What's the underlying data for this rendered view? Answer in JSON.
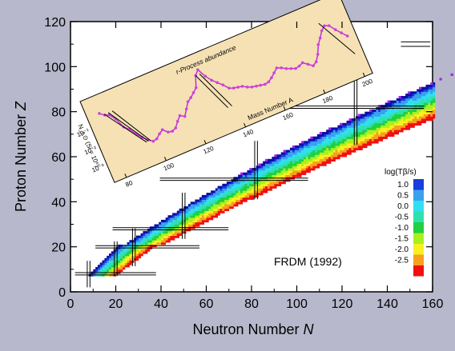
{
  "chart_data": {
    "type": "heatmap",
    "title": "",
    "xlabel": "Neutron Number",
    "xlabel_var": "N",
    "ylabel": "Proton Number",
    "ylabel_var": "Z",
    "xlim": [
      0,
      160
    ],
    "ylim": [
      0,
      120
    ],
    "x_ticks": [
      "0",
      "20",
      "40",
      "60",
      "80",
      "100",
      "120",
      "140",
      "160"
    ],
    "y_ticks": [
      "0",
      "20",
      "40",
      "60",
      "80",
      "100",
      "120"
    ],
    "model_label": "FRDM (1992)",
    "magic_numbers_N": [
      8,
      20,
      28,
      50,
      82,
      126
    ],
    "magic_numbers_Z": [
      8,
      20,
      28,
      50,
      82
    ],
    "color_scale": {
      "title": "log(Tβ/s)",
      "levels": [
        {
          "label": "1.0",
          "color": "#1a3ddb"
        },
        {
          "label": "0.5",
          "color": "#3aa0f0"
        },
        {
          "label": "0.0",
          "color": "#30e0f0"
        },
        {
          "label": "-0.5",
          "color": "#30e0b0"
        },
        {
          "label": "-1.0",
          "color": "#20d040"
        },
        {
          "label": "-1.5",
          "color": "#a8f020"
        },
        {
          "label": "-2.0",
          "color": "#f8f020"
        },
        {
          "label": "-2.5",
          "color": "#f8a020"
        },
        {
          "label": "",
          "color": "#f01010"
        }
      ]
    },
    "inset": {
      "title": "r-Process abundance",
      "xlabel": "Mass Number A",
      "ylabel": "N_r,⊙ (Si = 10⁶)",
      "x_ticks": [
        "80",
        "100",
        "120",
        "140",
        "160",
        "180",
        "200"
      ],
      "y_ticks": [
        "10⁻¹",
        "10⁻²",
        "10⁻³"
      ],
      "series": [
        {
          "A": 80,
          "logN": 1.55
        },
        {
          "A": 82,
          "logN": 1.35
        },
        {
          "A": 84,
          "logN": 1.25
        },
        {
          "A": 86,
          "logN": 0.9
        },
        {
          "A": 88,
          "logN": 0.3
        },
        {
          "A": 90,
          "logN": 0.05
        },
        {
          "A": 92,
          "logN": -0.35
        },
        {
          "A": 94,
          "logN": -0.65
        },
        {
          "A": 96,
          "logN": -0.9
        },
        {
          "A": 98,
          "logN": -1.1
        },
        {
          "A": 100,
          "logN": -1.05
        },
        {
          "A": 102,
          "logN": -0.85
        },
        {
          "A": 104,
          "logN": -0.7
        },
        {
          "A": 106,
          "logN": -0.95
        },
        {
          "A": 108,
          "logN": -1.0
        },
        {
          "A": 110,
          "logN": -0.9
        },
        {
          "A": 112,
          "logN": -0.6
        },
        {
          "A": 114,
          "logN": -0.35
        },
        {
          "A": 116,
          "logN": -0.5
        },
        {
          "A": 118,
          "logN": -0.15
        },
        {
          "A": 120,
          "logN": 0.2
        },
        {
          "A": 122,
          "logN": 0.35
        },
        {
          "A": 124,
          "logN": 0.55
        },
        {
          "A": 126,
          "logN": 0.75
        },
        {
          "A": 128,
          "logN": 1.4
        },
        {
          "A": 130,
          "logN": 1.65
        },
        {
          "A": 132,
          "logN": 1.15
        },
        {
          "A": 134,
          "logN": 0.8
        },
        {
          "A": 136,
          "logN": 0.55
        },
        {
          "A": 138,
          "logN": 0.3
        },
        {
          "A": 140,
          "logN": 0.0
        },
        {
          "A": 142,
          "logN": -0.1
        },
        {
          "A": 144,
          "logN": -0.15
        },
        {
          "A": 146,
          "logN": -0.2
        },
        {
          "A": 148,
          "logN": -0.35
        },
        {
          "A": 150,
          "logN": -0.45
        },
        {
          "A": 152,
          "logN": -0.5
        },
        {
          "A": 154,
          "logN": -0.55
        },
        {
          "A": 156,
          "logN": -0.6
        },
        {
          "A": 158,
          "logN": -0.55
        },
        {
          "A": 160,
          "logN": -0.4
        },
        {
          "A": 162,
          "logN": -0.2
        },
        {
          "A": 164,
          "logN": 0.0
        },
        {
          "A": 166,
          "logN": -0.1
        },
        {
          "A": 168,
          "logN": -0.25
        },
        {
          "A": 170,
          "logN": -0.35
        },
        {
          "A": 172,
          "logN": -0.45
        },
        {
          "A": 174,
          "logN": -0.4
        },
        {
          "A": 176,
          "logN": -0.3
        },
        {
          "A": 178,
          "logN": -0.5
        },
        {
          "A": 180,
          "logN": -0.7
        },
        {
          "A": 182,
          "logN": -0.55
        },
        {
          "A": 184,
          "logN": -0.2
        },
        {
          "A": 186,
          "logN": 0.3
        },
        {
          "A": 188,
          "logN": 0.6
        },
        {
          "A": 190,
          "logN": 0.95
        },
        {
          "A": 192,
          "logN": 1.15
        },
        {
          "A": 194,
          "logN": 1.05
        },
        {
          "A": 196,
          "logN": 0.7
        },
        {
          "A": 198,
          "logN": 0.4
        },
        {
          "A": 200,
          "logN": 0.1
        }
      ]
    }
  }
}
